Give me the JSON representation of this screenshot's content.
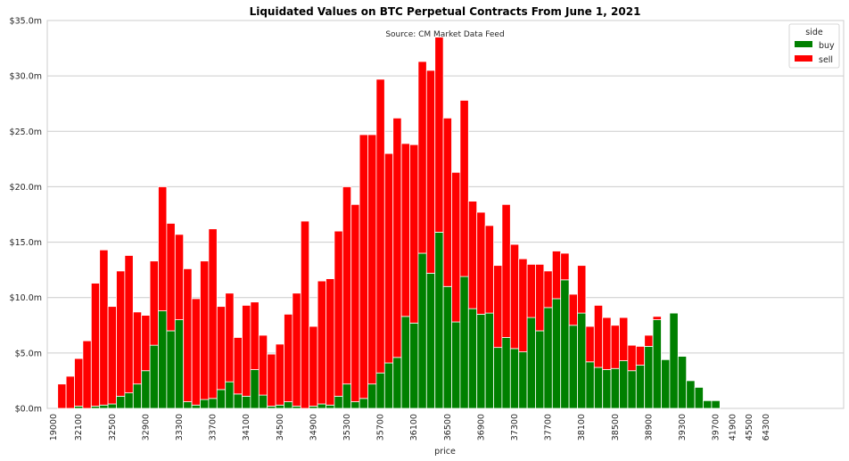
{
  "chart_data": {
    "type": "bar",
    "stacked": true,
    "title": "Liquidated Values on BTC Perpetual Contracts From June 1, 2021",
    "subtitle": "Source: CM Market Data Feed",
    "xlabel": "price",
    "ylabel": "",
    "ylim": [
      0,
      35
    ],
    "y_unit": "m",
    "ytick_values": [
      0,
      5,
      10,
      15,
      20,
      25,
      30,
      35
    ],
    "ytick_labels": [
      "$0.0m",
      "$5.0m",
      "$10.0m",
      "$15.0m",
      "$20.0m",
      "$25.0m",
      "$30.0m",
      "$35.0m"
    ],
    "grid": "horizontal",
    "legend": {
      "title": "side",
      "position": "top-right"
    },
    "categories": [
      19000,
      31900,
      32000,
      32100,
      32200,
      32300,
      32400,
      32500,
      32600,
      32700,
      32800,
      32900,
      33000,
      33100,
      33200,
      33300,
      33400,
      33500,
      33600,
      33700,
      33800,
      33900,
      34000,
      34100,
      34200,
      34300,
      34400,
      34500,
      34600,
      34700,
      34800,
      34900,
      35000,
      35100,
      35200,
      35300,
      35400,
      35500,
      35600,
      35700,
      35800,
      35900,
      36000,
      36100,
      36200,
      36300,
      36400,
      36500,
      36600,
      36700,
      36800,
      36900,
      37000,
      37100,
      37200,
      37300,
      37400,
      37500,
      37600,
      37700,
      37800,
      37900,
      38000,
      38100,
      38200,
      38300,
      38400,
      38500,
      38600,
      38700,
      38800,
      38900,
      39000,
      39100,
      39200,
      39300,
      39400,
      39500,
      39600,
      39700,
      39800,
      41900,
      43400,
      45500,
      49900,
      64300
    ],
    "xtick_labels": [
      "19000",
      "32100",
      "32500",
      "32900",
      "33300",
      "33700",
      "34100",
      "34500",
      "34900",
      "35300",
      "35700",
      "36100",
      "36500",
      "36900",
      "37300",
      "37700",
      "38100",
      "38500",
      "38900",
      "39300",
      "39700",
      "41900",
      "45500",
      "64300"
    ],
    "series": [
      {
        "name": "buy",
        "color": "#008000",
        "values": [
          0,
          0,
          0,
          0.2,
          0,
          0.2,
          0.3,
          0.4,
          1.1,
          1.4,
          2.2,
          3.4,
          5.7,
          8.8,
          7.0,
          8.0,
          0.6,
          0.3,
          0.8,
          0.9,
          1.7,
          2.4,
          1.3,
          1.1,
          3.5,
          1.2,
          0.2,
          0.3,
          0.6,
          0.2,
          0,
          0.2,
          0.4,
          0.3,
          1.1,
          2.2,
          0.6,
          0.9,
          2.2,
          3.2,
          4.1,
          4.6,
          8.3,
          7.7,
          14.0,
          12.2,
          15.9,
          11.0,
          7.8,
          11.9,
          9.0,
          8.5,
          8.6,
          5.5,
          6.4,
          5.4,
          5.1,
          8.2,
          7.0,
          9.1,
          9.9,
          11.6,
          7.5,
          8.6,
          4.2,
          3.7,
          3.5,
          3.6,
          4.3,
          3.4,
          3.9,
          5.6,
          8.0,
          4.4,
          8.6,
          4.7,
          2.5,
          1.9,
          0.7,
          0.7,
          0,
          0,
          0,
          0,
          0,
          0
        ]
      },
      {
        "name": "sell",
        "color": "#ff0000",
        "values": [
          0,
          2.2,
          2.9,
          4.3,
          6.1,
          11.1,
          14.0,
          8.8,
          11.3,
          12.4,
          6.5,
          5.0,
          7.6,
          11.2,
          9.7,
          7.7,
          12.0,
          9.6,
          12.5,
          15.3,
          7.5,
          8.0,
          5.1,
          8.2,
          6.1,
          5.4,
          4.7,
          5.5,
          7.9,
          10.2,
          16.9,
          7.2,
          11.1,
          11.4,
          14.9,
          17.8,
          17.8,
          23.8,
          22.5,
          26.5,
          18.9,
          21.6,
          15.6,
          16.1,
          17.3,
          18.3,
          17.6,
          15.2,
          13.5,
          15.9,
          9.7,
          9.2,
          7.9,
          7.4,
          12.0,
          9.4,
          8.4,
          4.8,
          6.0,
          3.3,
          4.3,
          2.4,
          2.8,
          4.3,
          3.2,
          5.6,
          4.7,
          3.9,
          3.9,
          2.3,
          1.7,
          1.0,
          0.3,
          0,
          0,
          0,
          0,
          0,
          0,
          0,
          0,
          0,
          0,
          0,
          0,
          0
        ]
      }
    ]
  }
}
